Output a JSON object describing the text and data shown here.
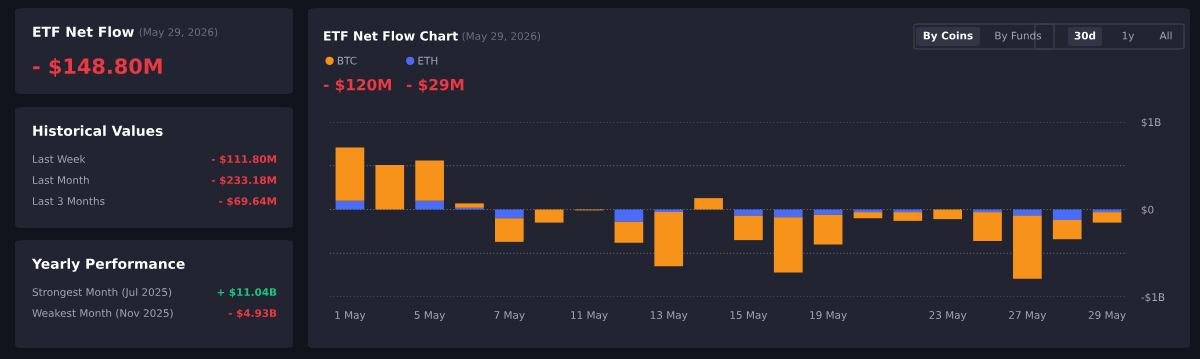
{
  "chart_data": [
    {
      "type": "other",
      "title": "ETF Net Flow",
      "subtitle": "(May 29, 2026)",
      "annotations": [
        "- $148.80M"
      ],
      "colors": [
        "#ea3943"
      ]
    },
    {
      "type": "other",
      "title": "Historical Values",
      "annotations": [
        "Last Week",
        "- $111.80M",
        "Last Month",
        "- $233.18M",
        "Last 3 Months",
        "- $69.64M"
      ],
      "colors": [
        "#ea3943",
        "#ea3943",
        "#ea3943"
      ]
    },
    {
      "type": "other",
      "title": "Yearly Performance",
      "annotations": [
        "Strongest Month (Jul 2025)",
        "+ $11.04B",
        "Weakest Month (Nov 2025)",
        "- $4.93B"
      ],
      "colors": [
        "#16c784",
        "#ea3943"
      ]
    },
    {
      "type": "bar",
      "title": "ETF Net Flow Chart",
      "subtitle": "(May 29, 2026)",
      "stacked": true,
      "legend": "top left",
      "grid": "y",
      "annotations": [
        "- $120M",
        "- $29M",
        "By Coins",
        "By Funds",
        "30d",
        "1y",
        "All"
      ],
      "categories": [
        "1 May",
        null,
        "5 May",
        null,
        "7 May",
        null,
        "11 May",
        null,
        "13 May",
        null,
        "15 May",
        null,
        "19 May",
        null,
        null,
        "23 May",
        null,
        "27 May",
        null,
        "29 May"
      ],
      "ylim": [
        -1,
        1
      ],
      "yticks": [
        {
          "value": 1,
          "label": "$1B"
        },
        {
          "value": 0.5,
          "label": null
        },
        {
          "value": 0,
          "label": "$0"
        },
        {
          "value": -0.5,
          "label": null
        },
        {
          "value": -1,
          "label": "-$1B"
        }
      ],
      "series": [
        {
          "name": "ETH",
          "color": "#4a6cf7",
          "values": [
            0.1,
            0,
            0.1,
            0.02,
            -0.1,
            0,
            null,
            -0.14,
            -0.03,
            0,
            -0.07,
            -0.09,
            -0.06,
            -0.03,
            -0.03,
            0,
            -0.03,
            -0.07,
            -0.12,
            -0.03
          ]
        },
        {
          "name": "BTC",
          "color": "#f7931a",
          "values": [
            0.61,
            0.51,
            0.46,
            0.05,
            -0.27,
            -0.15,
            -0.01,
            -0.24,
            -0.62,
            0.13,
            -0.28,
            -0.63,
            -0.34,
            -0.07,
            -0.1,
            -0.11,
            -0.33,
            -0.72,
            -0.22,
            -0.12
          ]
        }
      ]
    }
  ]
}
